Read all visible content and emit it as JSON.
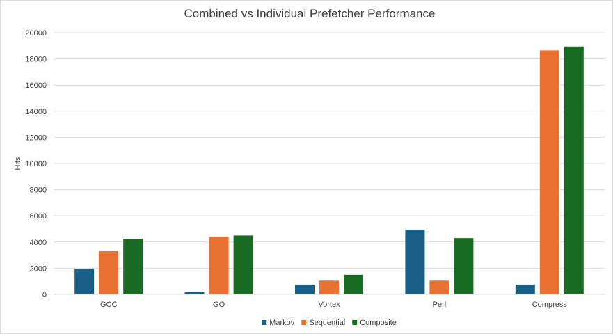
{
  "chart_data": {
    "type": "bar",
    "title": "Combined vs Individual Prefetcher Performance",
    "xlabel": "",
    "ylabel": "Hits",
    "ylim": [
      0,
      20000
    ],
    "yticks": [
      0,
      2000,
      4000,
      6000,
      8000,
      10000,
      12000,
      14000,
      16000,
      18000,
      20000
    ],
    "grid": true,
    "legend_position": "bottom",
    "categories": [
      "GCC",
      "GO",
      "Vortex",
      "Perl",
      "Compress"
    ],
    "series": [
      {
        "name": "Markov",
        "color": "#1a5f85",
        "values": [
          1950,
          180,
          750,
          4950,
          750
        ]
      },
      {
        "name": "Sequential",
        "color": "#e97132",
        "values": [
          3300,
          4400,
          1050,
          1050,
          18650
        ]
      },
      {
        "name": "Composite",
        "color": "#196b24",
        "values": [
          4250,
          4500,
          1500,
          4300,
          18950
        ]
      }
    ]
  }
}
